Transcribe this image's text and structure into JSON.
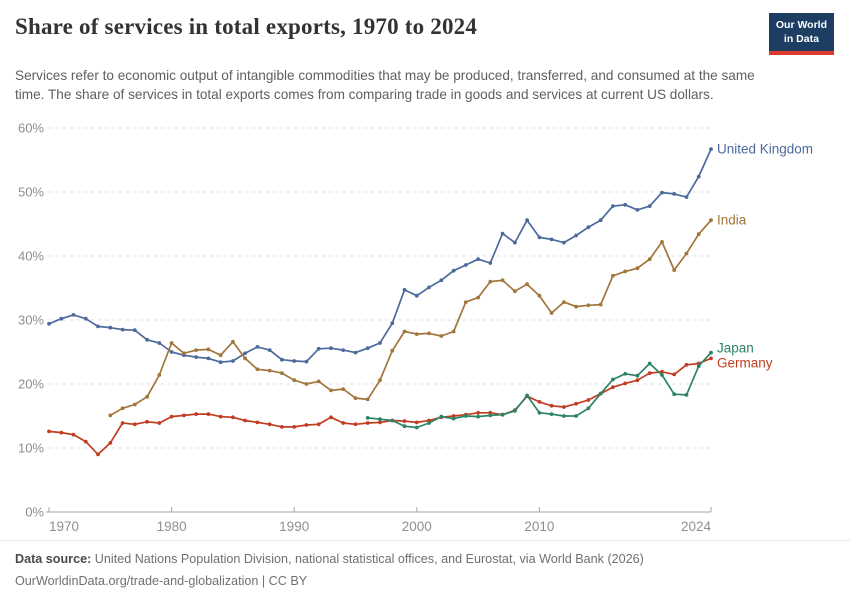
{
  "header": {
    "title": "Share of services in total exports, 1970 to 2024",
    "subtitle": "Services refer to economic output of intangible commodities that may be produced, transferred, and consumed at the same time. The share of services in total exports comes from comparing trade in goods and services at current US dollars.",
    "logo": {
      "line1": "Our World",
      "line2": "in Data"
    }
  },
  "chart_data": {
    "type": "line",
    "title": "Share of services in total exports, 1970 to 2024",
    "xlabel": "",
    "ylabel": "",
    "y_unit": "%",
    "x_range": [
      1970,
      2024
    ],
    "ylim": [
      0,
      60
    ],
    "y_ticks": [
      0,
      10,
      20,
      30,
      40,
      50,
      60
    ],
    "x_ticks": [
      1970,
      1980,
      1990,
      2000,
      2010,
      2024
    ],
    "grid": "dashed-horizontal",
    "legend_position": "end-of-line-labels",
    "series": [
      {
        "name": "United Kingdom",
        "color": "#4C6A9C",
        "start_year": 1970,
        "values": [
          29.4,
          30.2,
          30.8,
          30.2,
          29.0,
          28.8,
          28.5,
          28.4,
          26.9,
          26.4,
          25.0,
          24.5,
          24.2,
          24.0,
          23.4,
          23.6,
          24.8,
          25.8,
          25.3,
          23.8,
          23.6,
          23.5,
          25.5,
          25.6,
          25.3,
          24.9,
          25.6,
          26.4,
          29.5,
          34.7,
          33.8,
          35.1,
          36.2,
          37.7,
          38.6,
          39.5,
          38.9,
          43.5,
          42.1,
          45.6,
          42.9,
          42.6,
          42.1,
          43.2,
          44.5,
          45.6,
          47.8,
          48.0,
          47.2,
          47.8,
          49.9,
          49.7,
          49.2,
          52.4,
          56.7
        ]
      },
      {
        "name": "India",
        "color": "#A1763B",
        "start_year": 1975,
        "values": [
          15.1,
          16.2,
          16.8,
          18.0,
          21.4,
          26.4,
          24.8,
          25.3,
          25.4,
          24.5,
          26.6,
          24.0,
          22.3,
          22.1,
          21.7,
          20.6,
          20.0,
          20.4,
          19.0,
          19.2,
          17.8,
          17.6,
          20.6,
          25.2,
          28.2,
          27.8,
          27.9,
          27.5,
          28.2,
          32.8,
          33.5,
          36.0,
          36.2,
          34.5,
          35.6,
          33.8,
          31.1,
          32.8,
          32.1,
          32.3,
          32.4,
          36.9,
          37.6,
          38.1,
          39.5,
          42.2,
          37.8,
          40.4,
          43.4,
          45.6
        ]
      },
      {
        "name": "Japan",
        "color": "#2C8465",
        "start_year": 1996,
        "values": [
          14.7,
          14.5,
          14.3,
          13.4,
          13.2,
          13.9,
          14.9,
          14.6,
          15.0,
          14.9,
          15.1,
          15.2,
          15.8,
          18.2,
          15.5,
          15.3,
          15.0,
          15.0,
          16.2,
          18.5,
          20.7,
          21.6,
          21.3,
          23.2,
          21.4,
          18.4,
          18.3,
          22.8,
          24.9
        ]
      },
      {
        "name": "Germany",
        "color": "#C13D22",
        "start_year": 1970,
        "values": [
          12.6,
          12.4,
          12.1,
          11.0,
          9.0,
          10.8,
          13.9,
          13.7,
          14.1,
          13.9,
          14.9,
          15.1,
          15.3,
          15.3,
          14.9,
          14.8,
          14.3,
          14.0,
          13.7,
          13.3,
          13.3,
          13.6,
          13.7,
          14.8,
          13.9,
          13.7,
          13.9,
          14.0,
          14.3,
          14.2,
          14.0,
          14.3,
          14.8,
          15.0,
          15.2,
          15.5,
          15.5,
          15.2,
          15.9,
          18.1,
          17.2,
          16.6,
          16.4,
          16.9,
          17.5,
          18.5,
          19.5,
          20.1,
          20.6,
          21.7,
          21.9,
          21.5,
          23.0,
          23.2,
          24.0
        ]
      }
    ]
  },
  "footer": {
    "datasource_label": "Data source:",
    "datasource_text": " United Nations Population Division, national statistical offices, and Eurostat, via World Bank (2026)",
    "link": "OurWorldinData.org/trade-and-globalization",
    "license": " | CC BY"
  }
}
